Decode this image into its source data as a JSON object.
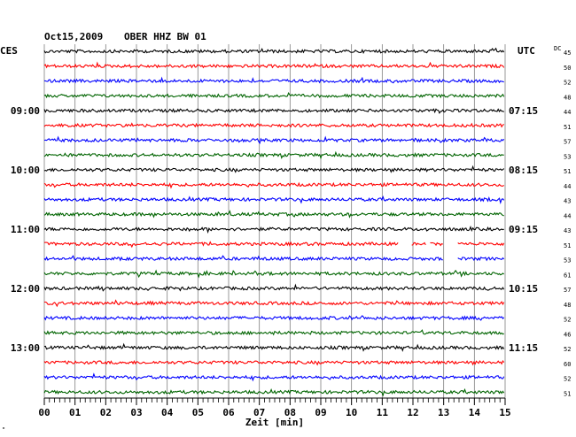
{
  "header": {
    "date": "Oct15,2009",
    "station": "OBER HHZ BW 01",
    "left_tz": "CES",
    "right_tz": "UTC",
    "right_col_label": "DC"
  },
  "footer": {
    "xlabel": "Zeit [min]",
    "corner_mark": "\""
  },
  "colors": {
    "black": "#000000",
    "red": "#ff0000",
    "blue": "#0000ff",
    "green": "#006400",
    "grid": "#808080"
  },
  "chart_data": {
    "type": "line",
    "title": "Oct15,2009  OBER HHZ BW 01",
    "xlabel": "Zeit [min]",
    "xlim": [
      0,
      15
    ],
    "x_ticks": [
      "00",
      "01",
      "02",
      "03",
      "04",
      "05",
      "06",
      "07",
      "08",
      "09",
      "10",
      "11",
      "12",
      "13",
      "14",
      "15"
    ],
    "trace_color_cycle": [
      "black",
      "red",
      "blue",
      "green"
    ],
    "trace_count": 24,
    "left_time_labels": [
      "09:00",
      "10:00",
      "11:00",
      "12:00",
      "13:00"
    ],
    "right_time_labels": [
      "07:15",
      "08:15",
      "09:15",
      "10:15",
      "11:15"
    ],
    "time_label_every_n_traces": 4,
    "time_label_first_trace": 4,
    "dc_offsets": [
      45,
      50,
      52,
      48,
      44,
      51,
      57,
      53,
      51,
      44,
      43,
      44,
      43,
      51,
      53,
      61,
      57,
      48,
      52,
      46,
      52,
      60,
      52,
      51
    ],
    "data_gaps": [
      {
        "trace": 13,
        "from_min": 11.55,
        "to_min": 11.95
      },
      {
        "trace": 13,
        "from_min": 12.45,
        "to_min": 12.55
      },
      {
        "trace": 13,
        "from_min": 13.0,
        "to_min": 13.45
      },
      {
        "trace": 14,
        "from_min": 13.0,
        "to_min": 13.45
      }
    ]
  }
}
